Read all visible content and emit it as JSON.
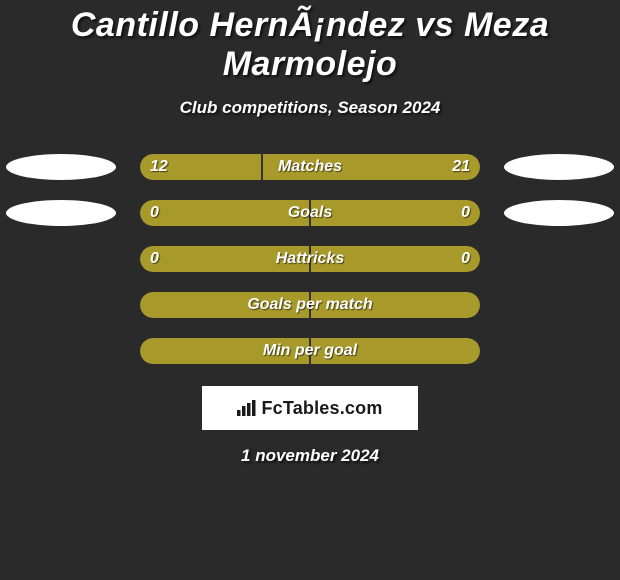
{
  "title": "Cantillo HernÃ¡ndez vs Meza Marmolejo",
  "subtitle": "Club competitions, Season 2024",
  "date": "1 november 2024",
  "brand": "FcTables.com",
  "bar_color": "#a89a2a",
  "bar_track_color": "#333333",
  "team_badge_color": "#ffffff",
  "rows": [
    {
      "label": "Matches",
      "left_val": "12",
      "right_val": "21",
      "left_pct": 36,
      "right_pct": 64,
      "show_left_badge": true,
      "show_right_badge": true
    },
    {
      "label": "Goals",
      "left_val": "0",
      "right_val": "0",
      "left_pct": 50,
      "right_pct": 50,
      "show_left_badge": true,
      "show_right_badge": true
    },
    {
      "label": "Hattricks",
      "left_val": "0",
      "right_val": "0",
      "left_pct": 50,
      "right_pct": 50,
      "show_left_badge": false,
      "show_right_badge": false
    },
    {
      "label": "Goals per match",
      "left_val": "",
      "right_val": "",
      "left_pct": 50,
      "right_pct": 50,
      "show_left_badge": false,
      "show_right_badge": false
    },
    {
      "label": "Min per goal",
      "left_val": "",
      "right_val": "",
      "left_pct": 50,
      "right_pct": 50,
      "show_left_badge": false,
      "show_right_badge": false
    }
  ]
}
